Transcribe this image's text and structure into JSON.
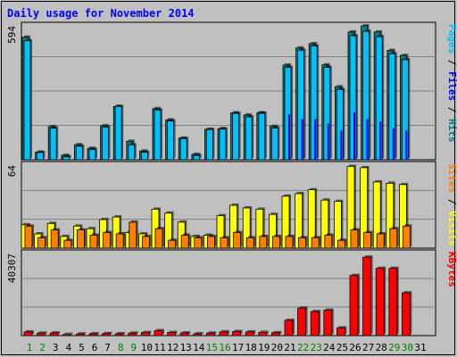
{
  "chart_data": {
    "type": "bar",
    "title": "Daily usage for November 2014",
    "categories": [
      "1",
      "2",
      "3",
      "4",
      "5",
      "6",
      "7",
      "8",
      "9",
      "10",
      "11",
      "12",
      "13",
      "14",
      "15",
      "16",
      "17",
      "18",
      "19",
      "20",
      "21",
      "22",
      "23",
      "24",
      "25",
      "26",
      "27",
      "28",
      "29",
      "30",
      "31"
    ],
    "weekend_days": [
      "1",
      "2",
      "8",
      "9",
      "15",
      "16",
      "22",
      "23",
      "29",
      "30"
    ],
    "panels": [
      {
        "id": "hits",
        "ymax": 594,
        "ymax_label": "594",
        "side_label": [
          {
            "text": "Pages",
            "color": "#00c0ff"
          },
          {
            "text": " / ",
            "color": "#000000"
          },
          {
            "text": "Files",
            "color": "#0000ff"
          },
          {
            "text": " / ",
            "color": "#000000"
          },
          {
            "text": "Hits",
            "color": "#008080"
          }
        ],
        "series": [
          {
            "name": "Hits",
            "color": "#008080",
            "values": [
              544,
              34,
              147,
              20,
              67,
              51,
              151,
              236,
              82,
              39,
              227,
              177,
              96,
              24,
              135,
              138,
              208,
              199,
              209,
              148,
              420,
              496,
              515,
              421,
              324,
              567,
              594,
              567,
              485,
              463,
              0
            ]
          },
          {
            "name": "Files",
            "color": "#00c0ff",
            "values": [
              528,
              32,
              140,
              13,
              60,
              46,
              145,
              237,
              66,
              33,
              221,
              172,
              94,
              19,
              134,
              136,
              206,
              190,
              206,
              141,
              410,
              486,
              505,
              410,
              312,
              550,
              570,
              546,
              470,
              444,
              0
            ]
          },
          {
            "name": "Pages",
            "color": "#0000ff",
            "values": [
              0,
              0,
              0,
              0,
              0,
              0,
              0,
              0,
              0,
              0,
              0,
              0,
              0,
              0,
              0,
              0,
              0,
              0,
              0,
              0,
              200,
              180,
              180,
              160,
              130,
              210,
              180,
              170,
              140,
              130,
              0
            ]
          }
        ]
      },
      {
        "id": "visits",
        "ymax": 64,
        "ymax_label": "64",
        "side_label": [
          {
            "text": "Sites",
            "color": "#ff8000"
          },
          {
            "text": " / ",
            "color": "#000000"
          },
          {
            "text": "Visits",
            "color": "#ffff00"
          }
        ],
        "series": [
          {
            "name": "Visits",
            "color": "#ffff00",
            "values": [
              18,
              11,
              19,
              9,
              17,
              15,
              22,
              24,
              12,
              11,
              30,
              27,
              20,
              9,
              10,
              25,
              33,
              31,
              30,
              26,
              40,
              42,
              45,
              37,
              36,
              63,
              62,
              51,
              50,
              49,
              0
            ]
          },
          {
            "name": "Sites",
            "color": "#ff8000",
            "values": [
              17,
              8,
              14,
              6,
              14,
              10,
              12,
              11,
              20,
              9,
              15,
              6,
              10,
              8,
              9,
              8,
              12,
              8,
              9,
              9,
              9,
              8,
              8,
              10,
              6,
              14,
              12,
              11,
              15,
              17,
              0
            ]
          }
        ]
      },
      {
        "id": "kbytes",
        "ymax": 40307,
        "ymax_label": "40307",
        "side_label": [
          {
            "text": "KBytes",
            "color": "#ff0000"
          }
        ],
        "series": [
          {
            "name": "KBytes",
            "color": "#ff0000",
            "values": [
              1800,
              1200,
              1300,
              600,
              800,
              900,
              1000,
              900,
              1200,
              1500,
              2400,
              1500,
              1300,
              900,
              1200,
              1800,
              2000,
              1800,
              1600,
              1400,
              7500,
              13500,
              11800,
              12500,
              3800,
              29500,
              38500,
              33000,
              33000,
              21000,
              0
            ]
          }
        ]
      }
    ]
  }
}
